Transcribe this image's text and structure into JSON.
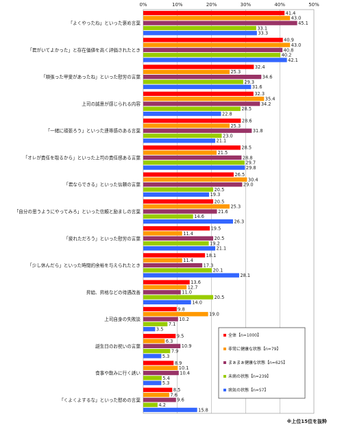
{
  "chart_data": {
    "type": "bar",
    "orientation": "horizontal",
    "x_ticks": [
      "0%",
      "10%",
      "20%",
      "30%",
      "40%",
      "50%"
    ],
    "xlim": [
      0,
      50
    ],
    "grid": true,
    "legend_position": "bottom-right",
    "categories": [
      "「よくやったね」といった褒め言葉",
      "「君がいてよかった」と存在価値を高く評価されたとき",
      "「頑張った甲斐があったね」といった慰労の言葉",
      "上司の誠意が感じられる内容",
      "「一緒に頑張ろう」といった連帯感のある言葉",
      "「オレが責任を取るから」といった上司の責任感ある言葉",
      "「君ならできる」といった信頼の言葉",
      "「自分の思うようにやってみろ」といった信頼と励ましの言葉",
      "「疲れただろう」といった慰労の言葉",
      "「少し休んだら」といった時間的余裕を与えられたとき",
      "昇給、昇格などの待遇改善",
      "上司自身の失敗談",
      "誕生日のお祝いの言葉",
      "食事や飲みに行く誘い",
      "「くよくよするな」といった慰めの言葉"
    ],
    "series": [
      {
        "name": "全体【n=1000】",
        "color": "#ff0000",
        "values": [
          41.4,
          40.9,
          32.4,
          32.3,
          28.6,
          28.5,
          26.5,
          20.5,
          19.5,
          18.1,
          13.6,
          9.8,
          9.5,
          8.9,
          8.5
        ]
      },
      {
        "name": "非常に健康な状態【n=79】",
        "color": "#ff9900",
        "values": [
          43.0,
          43.0,
          25.3,
          35.4,
          25.3,
          21.5,
          30.4,
          25.3,
          11.4,
          11.4,
          12.7,
          19.0,
          6.3,
          10.1,
          7.6
        ]
      },
      {
        "name": "まぁまぁ健康な状態【n=625】",
        "color": "#993366",
        "values": [
          45.1,
          40.8,
          34.6,
          34.2,
          31.8,
          28.8,
          29.0,
          21.6,
          20.5,
          17.3,
          11.0,
          10.2,
          10.9,
          10.4,
          9.6
        ]
      },
      {
        "name": "未病の状態【n=239】",
        "color": "#99cc00",
        "values": [
          33.1,
          40.2,
          29.3,
          28.5,
          23.0,
          29.7,
          20.5,
          14.6,
          19.2,
          20.1,
          20.5,
          7.1,
          7.9,
          5.4,
          4.2
        ]
      },
      {
        "name": "病気の状態【n=57】",
        "color": "#3366ff",
        "values": [
          33.3,
          42.1,
          31.6,
          22.8,
          21.1,
          29.8,
          19.3,
          26.3,
          21.1,
          28.1,
          14.0,
          3.5,
          5.3,
          5.3,
          15.8
        ]
      }
    ]
  },
  "footnote": "※上位15位を抜粋"
}
